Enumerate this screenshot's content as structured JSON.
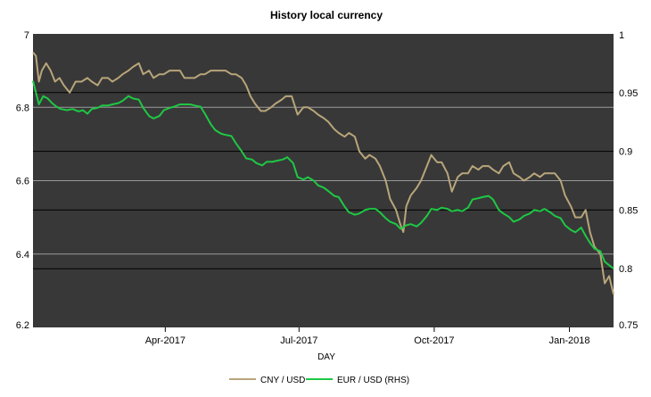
{
  "chart_data": {
    "type": "line",
    "title": "History local currency",
    "xlabel": "DAY",
    "ylabel_left": "",
    "ylabel_right": "",
    "x_range": [
      "2017-01-01",
      "2018-01-31"
    ],
    "x_ticks": [
      {
        "date": "2017-04-01",
        "label": "Apr-2017"
      },
      {
        "date": "2017-07-01",
        "label": "Jul-2017"
      },
      {
        "date": "2017-10-01",
        "label": "Oct-2017"
      },
      {
        "date": "2018-01-01",
        "label": "Jan-2018"
      }
    ],
    "y_left": {
      "min": 6.2,
      "max": 7.0,
      "ticks": [
        "6.2",
        "6.4",
        "6.6",
        "6.8",
        "7"
      ]
    },
    "y_right": {
      "min": 0.75,
      "max": 1.0,
      "ticks": [
        "0.75",
        "0.8",
        "0.85",
        "0.9",
        "0.95",
        "1"
      ]
    },
    "gridlines_left": [
      6.4,
      6.6,
      6.8
    ],
    "gridlines_right": [
      0.8,
      0.85,
      0.9,
      0.95
    ],
    "legend_position": "bottom",
    "colors": {
      "plot_bg": "#383838",
      "grid_left": "#9a9a9a",
      "grid_right": "#000000",
      "cny": "#b8a57a",
      "eur": "#1ec844"
    },
    "series": [
      {
        "name": "CNY / USD",
        "axis": "left",
        "color": "#b8a57a",
        "points": [
          [
            "2017-01-01",
            6.95
          ],
          [
            "2017-01-03",
            6.94
          ],
          [
            "2017-01-05",
            6.87
          ],
          [
            "2017-01-07",
            6.9
          ],
          [
            "2017-01-10",
            6.92
          ],
          [
            "2017-01-13",
            6.9
          ],
          [
            "2017-01-16",
            6.87
          ],
          [
            "2017-01-19",
            6.88
          ],
          [
            "2017-01-22",
            6.86
          ],
          [
            "2017-01-24",
            6.85
          ],
          [
            "2017-01-26",
            6.84
          ],
          [
            "2017-01-30",
            6.87
          ],
          [
            "2017-02-03",
            6.87
          ],
          [
            "2017-02-07",
            6.88
          ],
          [
            "2017-02-10",
            6.87
          ],
          [
            "2017-02-14",
            6.86
          ],
          [
            "2017-02-17",
            6.88
          ],
          [
            "2017-02-21",
            6.88
          ],
          [
            "2017-02-24",
            6.87
          ],
          [
            "2017-02-28",
            6.88
          ],
          [
            "2017-03-03",
            6.89
          ],
          [
            "2017-03-07",
            6.9
          ],
          [
            "2017-03-10",
            6.91
          ],
          [
            "2017-03-14",
            6.92
          ],
          [
            "2017-03-17",
            6.89
          ],
          [
            "2017-03-21",
            6.9
          ],
          [
            "2017-03-24",
            6.88
          ],
          [
            "2017-03-28",
            6.89
          ],
          [
            "2017-03-31",
            6.89
          ],
          [
            "2017-04-04",
            6.9
          ],
          [
            "2017-04-07",
            6.9
          ],
          [
            "2017-04-11",
            6.9
          ],
          [
            "2017-04-14",
            6.88
          ],
          [
            "2017-04-18",
            6.88
          ],
          [
            "2017-04-21",
            6.88
          ],
          [
            "2017-04-25",
            6.89
          ],
          [
            "2017-04-28",
            6.89
          ],
          [
            "2017-05-02",
            6.9
          ],
          [
            "2017-05-05",
            6.9
          ],
          [
            "2017-05-09",
            6.9
          ],
          [
            "2017-05-12",
            6.9
          ],
          [
            "2017-05-16",
            6.89
          ],
          [
            "2017-05-19",
            6.89
          ],
          [
            "2017-05-23",
            6.88
          ],
          [
            "2017-05-26",
            6.86
          ],
          [
            "2017-05-29",
            6.83
          ],
          [
            "2017-06-01",
            6.81
          ],
          [
            "2017-06-05",
            6.79
          ],
          [
            "2017-06-08",
            6.79
          ],
          [
            "2017-06-12",
            6.8
          ],
          [
            "2017-06-15",
            6.81
          ],
          [
            "2017-06-19",
            6.82
          ],
          [
            "2017-06-22",
            6.83
          ],
          [
            "2017-06-26",
            6.83
          ],
          [
            "2017-06-30",
            6.78
          ],
          [
            "2017-07-04",
            6.8
          ],
          [
            "2017-07-07",
            6.8
          ],
          [
            "2017-07-11",
            6.79
          ],
          [
            "2017-07-14",
            6.78
          ],
          [
            "2017-07-18",
            6.77
          ],
          [
            "2017-07-21",
            6.76
          ],
          [
            "2017-07-25",
            6.74
          ],
          [
            "2017-07-28",
            6.73
          ],
          [
            "2017-08-01",
            6.72
          ],
          [
            "2017-08-04",
            6.73
          ],
          [
            "2017-08-08",
            6.72
          ],
          [
            "2017-08-11",
            6.68
          ],
          [
            "2017-08-15",
            6.66
          ],
          [
            "2017-08-18",
            6.67
          ],
          [
            "2017-08-22",
            6.66
          ],
          [
            "2017-08-25",
            6.64
          ],
          [
            "2017-08-29",
            6.6
          ],
          [
            "2017-09-01",
            6.55
          ],
          [
            "2017-09-05",
            6.52
          ],
          [
            "2017-09-08",
            6.48
          ],
          [
            "2017-09-10",
            6.46
          ],
          [
            "2017-09-12",
            6.53
          ],
          [
            "2017-09-15",
            6.56
          ],
          [
            "2017-09-19",
            6.58
          ],
          [
            "2017-09-22",
            6.6
          ],
          [
            "2017-09-26",
            6.64
          ],
          [
            "2017-09-29",
            6.67
          ],
          [
            "2017-10-03",
            6.65
          ],
          [
            "2017-10-06",
            6.65
          ],
          [
            "2017-10-10",
            6.62
          ],
          [
            "2017-10-13",
            6.57
          ],
          [
            "2017-10-17",
            6.61
          ],
          [
            "2017-10-20",
            6.62
          ],
          [
            "2017-10-24",
            6.62
          ],
          [
            "2017-10-27",
            6.64
          ],
          [
            "2017-10-31",
            6.63
          ],
          [
            "2017-11-03",
            6.64
          ],
          [
            "2017-11-07",
            6.64
          ],
          [
            "2017-11-10",
            6.63
          ],
          [
            "2017-11-14",
            6.62
          ],
          [
            "2017-11-17",
            6.64
          ],
          [
            "2017-11-21",
            6.65
          ],
          [
            "2017-11-24",
            6.62
          ],
          [
            "2017-11-28",
            6.61
          ],
          [
            "2017-12-01",
            6.6
          ],
          [
            "2017-12-05",
            6.61
          ],
          [
            "2017-12-08",
            6.62
          ],
          [
            "2017-12-12",
            6.61
          ],
          [
            "2017-12-15",
            6.62
          ],
          [
            "2017-12-19",
            6.62
          ],
          [
            "2017-12-22",
            6.62
          ],
          [
            "2017-12-26",
            6.6
          ],
          [
            "2017-12-29",
            6.56
          ],
          [
            "2018-01-02",
            6.53
          ],
          [
            "2018-01-05",
            6.5
          ],
          [
            "2018-01-09",
            6.5
          ],
          [
            "2018-01-12",
            6.52
          ],
          [
            "2018-01-15",
            6.46
          ],
          [
            "2018-01-18",
            6.42
          ],
          [
            "2018-01-22",
            6.4
          ],
          [
            "2018-01-25",
            6.32
          ],
          [
            "2018-01-28",
            6.34
          ],
          [
            "2018-01-31",
            6.29
          ]
        ]
      },
      {
        "name": "EUR / USD (RHS)",
        "axis": "right",
        "color": "#1ec844",
        "points": [
          [
            "2017-01-01",
            0.96
          ],
          [
            "2017-01-03",
            0.95
          ],
          [
            "2017-01-05",
            0.94
          ],
          [
            "2017-01-08",
            0.947
          ],
          [
            "2017-01-11",
            0.945
          ],
          [
            "2017-01-14",
            0.941
          ],
          [
            "2017-01-17",
            0.938
          ],
          [
            "2017-01-20",
            0.936
          ],
          [
            "2017-01-24",
            0.935
          ],
          [
            "2017-01-28",
            0.936
          ],
          [
            "2017-02-01",
            0.934
          ],
          [
            "2017-02-04",
            0.935
          ],
          [
            "2017-02-07",
            0.932
          ],
          [
            "2017-02-10",
            0.936
          ],
          [
            "2017-02-14",
            0.937
          ],
          [
            "2017-02-17",
            0.939
          ],
          [
            "2017-02-21",
            0.939
          ],
          [
            "2017-02-24",
            0.94
          ],
          [
            "2017-02-28",
            0.941
          ],
          [
            "2017-03-03",
            0.943
          ],
          [
            "2017-03-07",
            0.947
          ],
          [
            "2017-03-10",
            0.945
          ],
          [
            "2017-03-14",
            0.944
          ],
          [
            "2017-03-17",
            0.937
          ],
          [
            "2017-03-21",
            0.93
          ],
          [
            "2017-03-24",
            0.928
          ],
          [
            "2017-03-28",
            0.93
          ],
          [
            "2017-03-31",
            0.935
          ],
          [
            "2017-04-04",
            0.937
          ],
          [
            "2017-04-07",
            0.938
          ],
          [
            "2017-04-11",
            0.94
          ],
          [
            "2017-04-14",
            0.94
          ],
          [
            "2017-04-18",
            0.94
          ],
          [
            "2017-04-21",
            0.939
          ],
          [
            "2017-04-25",
            0.938
          ],
          [
            "2017-04-28",
            0.932
          ],
          [
            "2017-05-02",
            0.923
          ],
          [
            "2017-05-05",
            0.918
          ],
          [
            "2017-05-09",
            0.915
          ],
          [
            "2017-05-12",
            0.914
          ],
          [
            "2017-05-16",
            0.913
          ],
          [
            "2017-05-19",
            0.907
          ],
          [
            "2017-05-23",
            0.9
          ],
          [
            "2017-05-26",
            0.894
          ],
          [
            "2017-05-30",
            0.893
          ],
          [
            "2017-06-02",
            0.89
          ],
          [
            "2017-06-06",
            0.888
          ],
          [
            "2017-06-09",
            0.891
          ],
          [
            "2017-06-13",
            0.891
          ],
          [
            "2017-06-16",
            0.892
          ],
          [
            "2017-06-20",
            0.893
          ],
          [
            "2017-06-23",
            0.895
          ],
          [
            "2017-06-27",
            0.89
          ],
          [
            "2017-06-30",
            0.878
          ],
          [
            "2017-07-04",
            0.876
          ],
          [
            "2017-07-07",
            0.878
          ],
          [
            "2017-07-11",
            0.875
          ],
          [
            "2017-07-14",
            0.871
          ],
          [
            "2017-07-18",
            0.869
          ],
          [
            "2017-07-21",
            0.866
          ],
          [
            "2017-07-25",
            0.862
          ],
          [
            "2017-07-28",
            0.861
          ],
          [
            "2017-08-01",
            0.853
          ],
          [
            "2017-08-04",
            0.848
          ],
          [
            "2017-08-08",
            0.846
          ],
          [
            "2017-08-11",
            0.847
          ],
          [
            "2017-08-15",
            0.85
          ],
          [
            "2017-08-18",
            0.851
          ],
          [
            "2017-08-22",
            0.851
          ],
          [
            "2017-08-25",
            0.848
          ],
          [
            "2017-08-29",
            0.843
          ],
          [
            "2017-09-01",
            0.84
          ],
          [
            "2017-09-05",
            0.838
          ],
          [
            "2017-09-08",
            0.834
          ],
          [
            "2017-09-12",
            0.837
          ],
          [
            "2017-09-15",
            0.838
          ],
          [
            "2017-09-19",
            0.836
          ],
          [
            "2017-09-22",
            0.839
          ],
          [
            "2017-09-26",
            0.845
          ],
          [
            "2017-09-29",
            0.851
          ],
          [
            "2017-10-03",
            0.85
          ],
          [
            "2017-10-06",
            0.852
          ],
          [
            "2017-10-10",
            0.851
          ],
          [
            "2017-10-13",
            0.849
          ],
          [
            "2017-10-17",
            0.85
          ],
          [
            "2017-10-20",
            0.849
          ],
          [
            "2017-10-24",
            0.852
          ],
          [
            "2017-10-27",
            0.859
          ],
          [
            "2017-10-31",
            0.86
          ],
          [
            "2017-11-03",
            0.861
          ],
          [
            "2017-11-07",
            0.862
          ],
          [
            "2017-11-10",
            0.859
          ],
          [
            "2017-11-14",
            0.85
          ],
          [
            "2017-11-17",
            0.847
          ],
          [
            "2017-11-21",
            0.844
          ],
          [
            "2017-11-24",
            0.84
          ],
          [
            "2017-11-28",
            0.842
          ],
          [
            "2017-12-01",
            0.845
          ],
          [
            "2017-12-05",
            0.847
          ],
          [
            "2017-12-08",
            0.85
          ],
          [
            "2017-12-12",
            0.849
          ],
          [
            "2017-12-15",
            0.851
          ],
          [
            "2017-12-19",
            0.848
          ],
          [
            "2017-12-22",
            0.845
          ],
          [
            "2017-12-26",
            0.843
          ],
          [
            "2017-12-29",
            0.837
          ],
          [
            "2018-01-02",
            0.833
          ],
          [
            "2018-01-05",
            0.831
          ],
          [
            "2018-01-09",
            0.835
          ],
          [
            "2018-01-12",
            0.828
          ],
          [
            "2018-01-15",
            0.822
          ],
          [
            "2018-01-18",
            0.817
          ],
          [
            "2018-01-22",
            0.815
          ],
          [
            "2018-01-25",
            0.806
          ],
          [
            "2018-01-28",
            0.803
          ],
          [
            "2018-01-31",
            0.8
          ]
        ]
      }
    ]
  }
}
